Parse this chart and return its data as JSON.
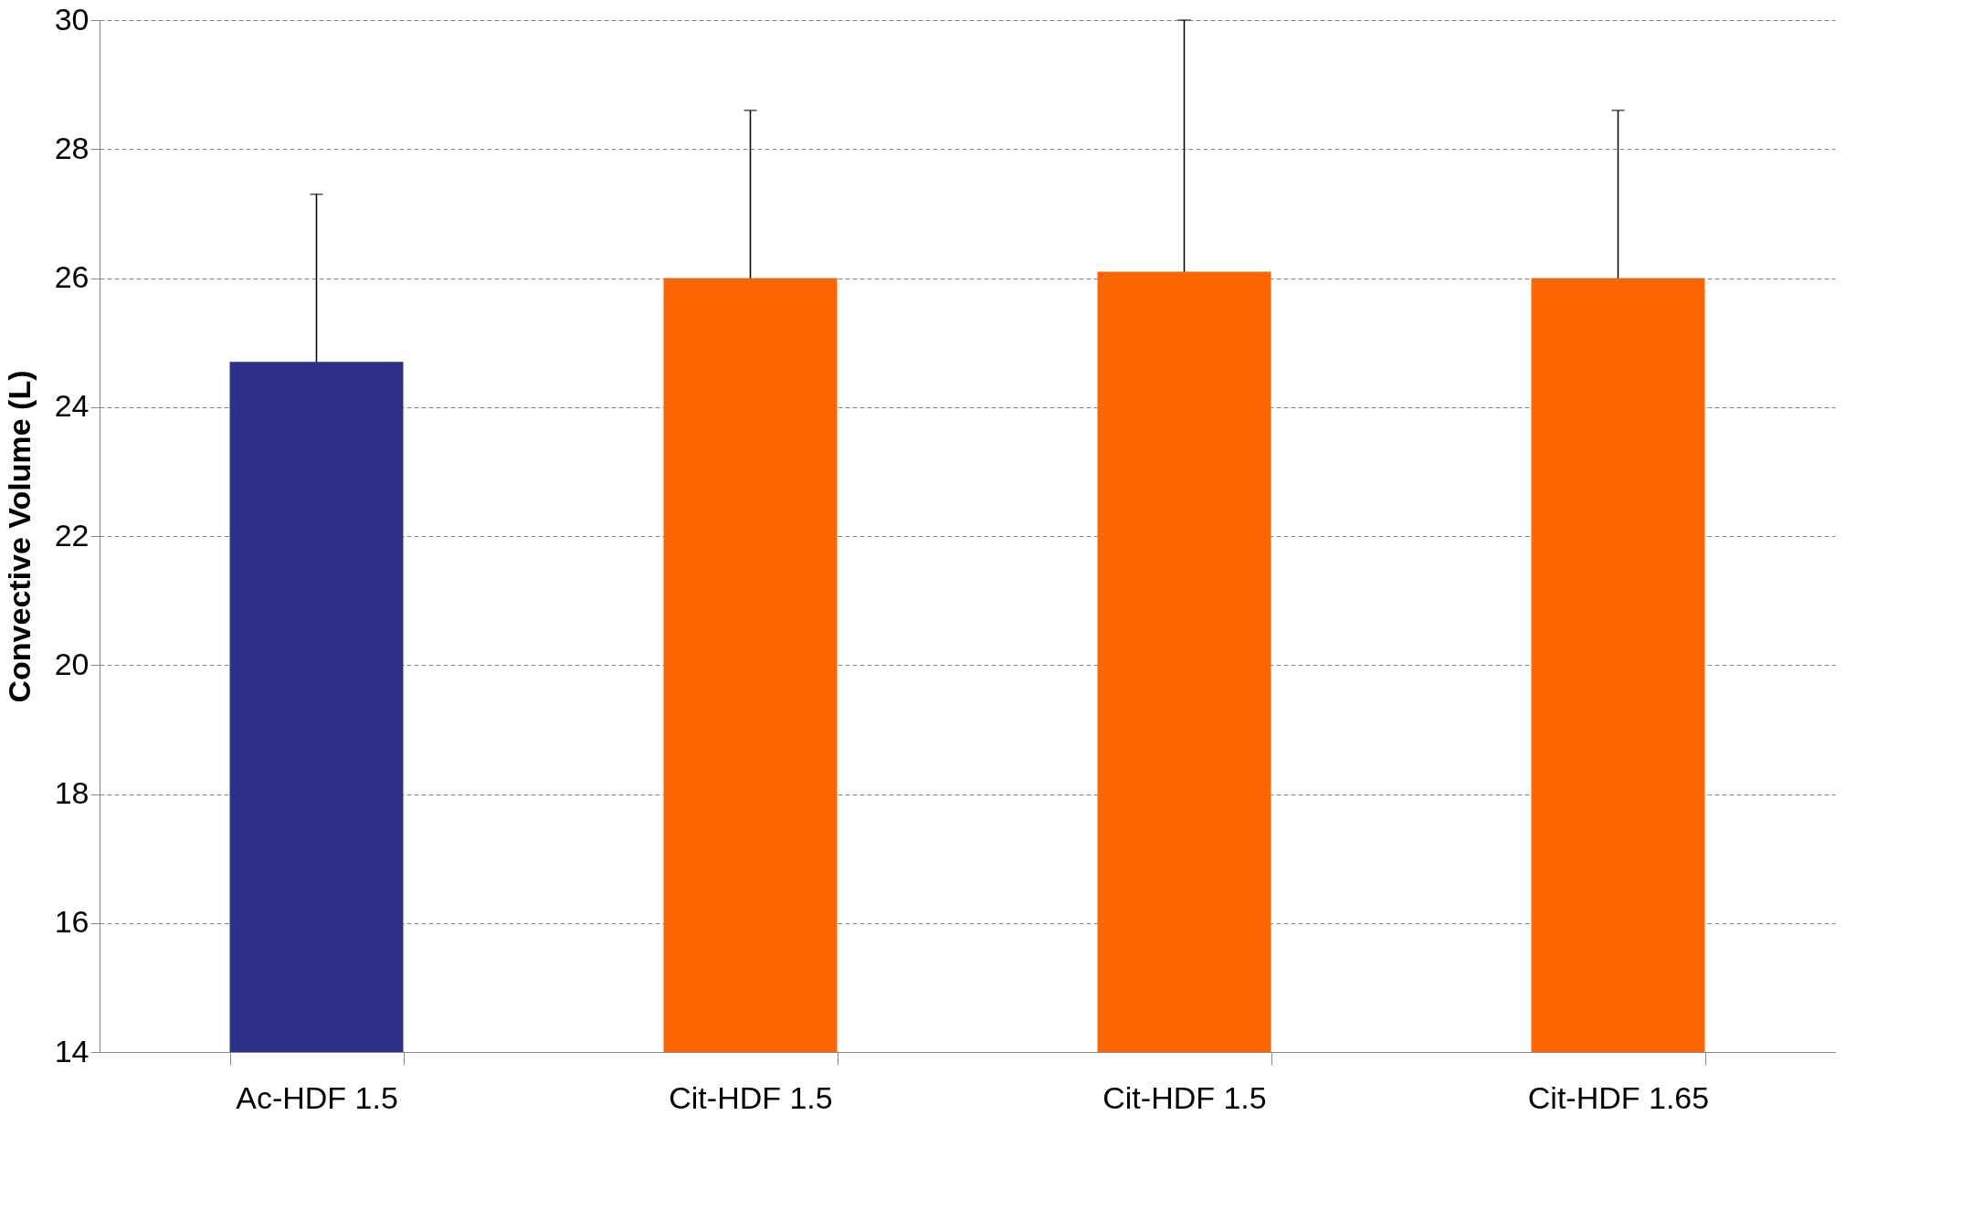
{
  "chart_data": {
    "type": "bar",
    "ylabel": "Convective Volume (L)",
    "categories": [
      "Ac-HDF 1.5",
      "Cit-HDF 1.5",
      "Cit-HDF 1.5",
      "Cit-HDF 1.65"
    ],
    "values": [
      24.7,
      26.0,
      26.1,
      26.0
    ],
    "colors": [
      "#2e3087",
      "#ff6600",
      "#ff6600",
      "#ff6600"
    ],
    "errors": [
      2.6,
      2.6,
      3.9,
      2.6
    ],
    "ylim": [
      14,
      30
    ],
    "yticks": [
      14,
      16,
      18,
      20,
      22,
      24,
      26,
      28,
      30
    ],
    "grid": "y"
  }
}
